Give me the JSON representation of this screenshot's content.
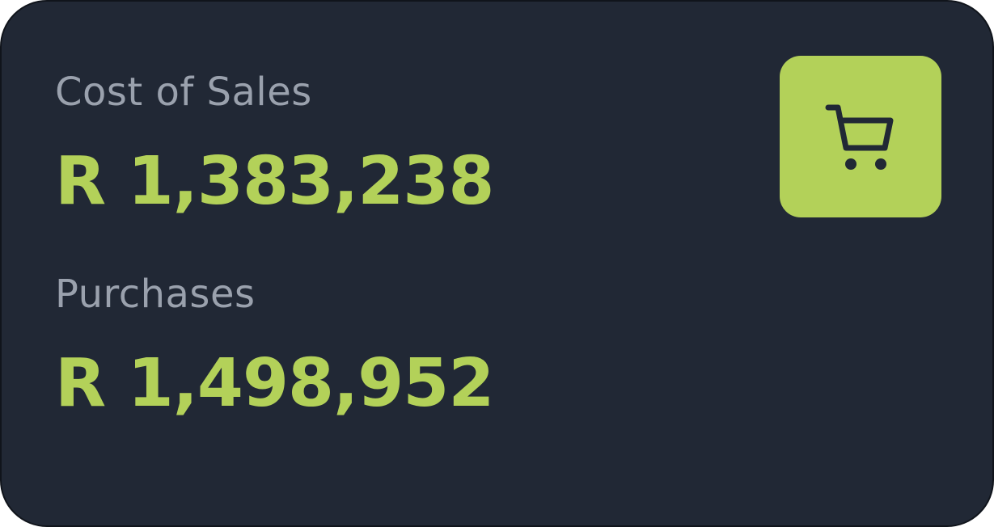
{
  "card": {
    "cost_of_sales": {
      "label": "Cost of Sales",
      "value": "R 1,383,238"
    },
    "purchases": {
      "label": "Purchases",
      "value": "R 1,498,952"
    },
    "icon": {
      "name": "shopping-cart-icon",
      "tile_color": "#b3d159",
      "glyph_color": "#212835"
    }
  },
  "colors": {
    "background": "#212835",
    "label": "#9aa1ad",
    "accent": "#b3d159"
  }
}
